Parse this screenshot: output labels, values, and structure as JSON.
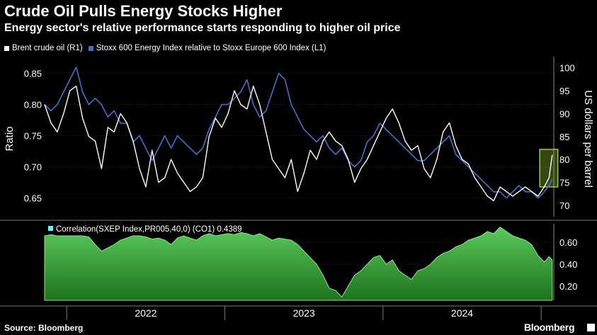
{
  "header": {
    "title": "Crude Oil Pulls Energy Stocks Higher",
    "subtitle": "Energy sector's relative performance starts responding to higher oil price"
  },
  "legend": {
    "items": [
      {
        "label": "Brent crude oil (R1)",
        "color": "#ffffff"
      },
      {
        "label": "Stoxx 600 Energy Index relative to Stoxx Europe 600 Index (L1)",
        "color": "#3f72c8"
      }
    ]
  },
  "footer": {
    "source": "Source: Bloomberg",
    "brand": "Bloomberg"
  },
  "chart_data": [
    {
      "type": "line",
      "title": "Crude Oil Pulls Energy Stocks Higher",
      "ylabel_left": "Ratio",
      "ylabel_right": "US dollars per barrel",
      "left_ticks": [
        "0.65",
        "0.70",
        "0.75",
        "0.80",
        "0.85"
      ],
      "right_ticks": [
        "70",
        "75",
        "80",
        "85",
        "90",
        "95",
        "100"
      ],
      "ylim_left": [
        0.62,
        0.87
      ],
      "ylim_right": [
        67.5,
        101.5
      ],
      "x_range": [
        2021.86,
        2025.08
      ],
      "highlight": {
        "x": [
          2025.0,
          2025.07
        ],
        "note": "recent rise highlighted"
      },
      "series": [
        {
          "name": "Stoxx 600 Energy Index relative to Stoxx Europe 600 Index (L1)",
          "axis": "left",
          "color": "#3f72c8",
          "x": [
            2021.86,
            2021.9,
            2021.94,
            2021.98,
            2022.02,
            2022.06,
            2022.1,
            2022.14,
            2022.18,
            2022.22,
            2022.26,
            2022.3,
            2022.34,
            2022.38,
            2022.42,
            2022.46,
            2022.5,
            2022.54,
            2022.58,
            2022.62,
            2022.66,
            2022.7,
            2022.74,
            2022.78,
            2022.82,
            2022.86,
            2022.9,
            2022.94,
            2022.98,
            2023.02,
            2023.06,
            2023.1,
            2023.14,
            2023.18,
            2023.22,
            2023.26,
            2023.3,
            2023.34,
            2023.38,
            2023.42,
            2023.46,
            2023.5,
            2023.54,
            2023.58,
            2023.62,
            2023.66,
            2023.7,
            2023.74,
            2023.78,
            2023.82,
            2023.86,
            2023.9,
            2023.94,
            2023.98,
            2024.02,
            2024.06,
            2024.1,
            2024.14,
            2024.18,
            2024.22,
            2024.26,
            2024.3,
            2024.34,
            2024.38,
            2024.42,
            2024.46,
            2024.5,
            2024.54,
            2024.58,
            2024.62,
            2024.66,
            2024.7,
            2024.74,
            2024.78,
            2024.82,
            2024.86,
            2024.9,
            2024.94,
            2024.98,
            2025.02,
            2025.05,
            2025.07
          ],
          "values": [
            0.8,
            0.79,
            0.8,
            0.82,
            0.84,
            0.86,
            0.82,
            0.8,
            0.81,
            0.8,
            0.78,
            0.79,
            0.77,
            0.77,
            0.74,
            0.75,
            0.73,
            0.71,
            0.73,
            0.75,
            0.73,
            0.75,
            0.74,
            0.73,
            0.72,
            0.73,
            0.76,
            0.78,
            0.8,
            0.8,
            0.81,
            0.82,
            0.84,
            0.8,
            0.78,
            0.79,
            0.82,
            0.85,
            0.84,
            0.8,
            0.78,
            0.76,
            0.75,
            0.74,
            0.75,
            0.73,
            0.72,
            0.73,
            0.71,
            0.7,
            0.71,
            0.74,
            0.75,
            0.77,
            0.76,
            0.75,
            0.74,
            0.73,
            0.72,
            0.71,
            0.71,
            0.72,
            0.73,
            0.74,
            0.75,
            0.72,
            0.71,
            0.7,
            0.69,
            0.68,
            0.67,
            0.66,
            0.66,
            0.65,
            0.66,
            0.67,
            0.66,
            0.66,
            0.65,
            0.66,
            0.67,
            0.68
          ]
        },
        {
          "name": "Brent crude oil (R1)",
          "axis": "right",
          "color": "#ffffff",
          "x": [
            2021.86,
            2021.9,
            2021.94,
            2021.98,
            2022.02,
            2022.06,
            2022.1,
            2022.14,
            2022.18,
            2022.22,
            2022.26,
            2022.3,
            2022.34,
            2022.38,
            2022.42,
            2022.46,
            2022.5,
            2022.54,
            2022.58,
            2022.62,
            2022.66,
            2022.7,
            2022.74,
            2022.78,
            2022.82,
            2022.86,
            2022.9,
            2022.94,
            2022.98,
            2023.02,
            2023.06,
            2023.1,
            2023.14,
            2023.18,
            2023.22,
            2023.26,
            2023.3,
            2023.34,
            2023.38,
            2023.42,
            2023.46,
            2023.5,
            2023.54,
            2023.58,
            2023.62,
            2023.66,
            2023.7,
            2023.74,
            2023.78,
            2023.82,
            2023.86,
            2023.9,
            2023.94,
            2023.98,
            2024.02,
            2024.06,
            2024.1,
            2024.14,
            2024.18,
            2024.22,
            2024.26,
            2024.3,
            2024.34,
            2024.38,
            2024.42,
            2024.46,
            2024.5,
            2024.54,
            2024.58,
            2024.62,
            2024.66,
            2024.7,
            2024.74,
            2024.78,
            2024.82,
            2024.86,
            2024.9,
            2024.94,
            2024.98,
            2025.02,
            2025.05,
            2025.07
          ],
          "values": [
            92,
            88,
            86,
            90,
            95,
            96,
            89,
            85,
            84,
            78,
            87,
            86,
            90,
            88,
            84,
            78,
            74,
            82,
            75,
            76,
            80,
            77,
            75,
            73,
            74,
            76,
            85,
            89,
            87,
            90,
            95,
            92,
            91,
            96,
            92,
            86,
            80,
            78,
            76,
            80,
            73,
            77,
            82,
            80,
            84,
            86,
            84,
            83,
            80,
            75,
            78,
            80,
            83,
            86,
            89,
            91,
            88,
            84,
            82,
            83,
            78,
            76,
            80,
            86,
            88,
            83,
            80,
            79,
            76,
            74,
            72,
            71,
            74,
            73,
            72,
            73,
            74,
            73,
            72,
            74,
            76,
            81
          ]
        },
        {
          "name": "Correlation(SXEP Index,PR005,40,0) (CO1)",
          "axis": "lower",
          "type": "area",
          "color": "#3fbf3f",
          "last_value_label": "0.4389",
          "ticks": [
            "0.20",
            "0.40",
            "0.60"
          ],
          "ylim": [
            0.07,
            0.77
          ],
          "x": [
            2021.86,
            2021.9,
            2021.94,
            2021.98,
            2022.02,
            2022.06,
            2022.1,
            2022.14,
            2022.18,
            2022.22,
            2022.26,
            2022.3,
            2022.34,
            2022.38,
            2022.42,
            2022.46,
            2022.5,
            2022.54,
            2022.58,
            2022.62,
            2022.66,
            2022.7,
            2022.74,
            2022.78,
            2022.82,
            2022.86,
            2022.9,
            2022.94,
            2022.98,
            2023.02,
            2023.06,
            2023.1,
            2023.14,
            2023.18,
            2023.22,
            2023.26,
            2023.3,
            2023.34,
            2023.38,
            2023.42,
            2023.46,
            2023.5,
            2023.54,
            2023.58,
            2023.62,
            2023.66,
            2023.7,
            2023.74,
            2023.78,
            2023.82,
            2023.86,
            2023.9,
            2023.94,
            2023.98,
            2024.02,
            2024.06,
            2024.1,
            2024.14,
            2024.18,
            2024.22,
            2024.26,
            2024.3,
            2024.34,
            2024.38,
            2024.42,
            2024.46,
            2024.5,
            2024.54,
            2024.58,
            2024.62,
            2024.66,
            2024.7,
            2024.74,
            2024.78,
            2024.82,
            2024.86,
            2024.9,
            2024.94,
            2024.98,
            2025.02,
            2025.05,
            2025.07
          ],
          "values": [
            0.66,
            0.67,
            0.66,
            0.66,
            0.66,
            0.66,
            0.66,
            0.65,
            0.58,
            0.52,
            0.55,
            0.58,
            0.62,
            0.64,
            0.66,
            0.66,
            0.65,
            0.63,
            0.64,
            0.62,
            0.58,
            0.64,
            0.66,
            0.64,
            0.62,
            0.66,
            0.68,
            0.66,
            0.67,
            0.68,
            0.67,
            0.69,
            0.68,
            0.66,
            0.68,
            0.65,
            0.62,
            0.64,
            0.63,
            0.62,
            0.58,
            0.52,
            0.46,
            0.4,
            0.3,
            0.18,
            0.16,
            0.1,
            0.2,
            0.3,
            0.34,
            0.4,
            0.46,
            0.48,
            0.4,
            0.44,
            0.34,
            0.3,
            0.26,
            0.34,
            0.36,
            0.4,
            0.46,
            0.5,
            0.52,
            0.56,
            0.58,
            0.62,
            0.64,
            0.66,
            0.7,
            0.68,
            0.74,
            0.7,
            0.66,
            0.64,
            0.62,
            0.58,
            0.48,
            0.42,
            0.47,
            0.44
          ]
        }
      ],
      "x_tick_labels": [
        "2022",
        "2023",
        "2024"
      ]
    }
  ]
}
